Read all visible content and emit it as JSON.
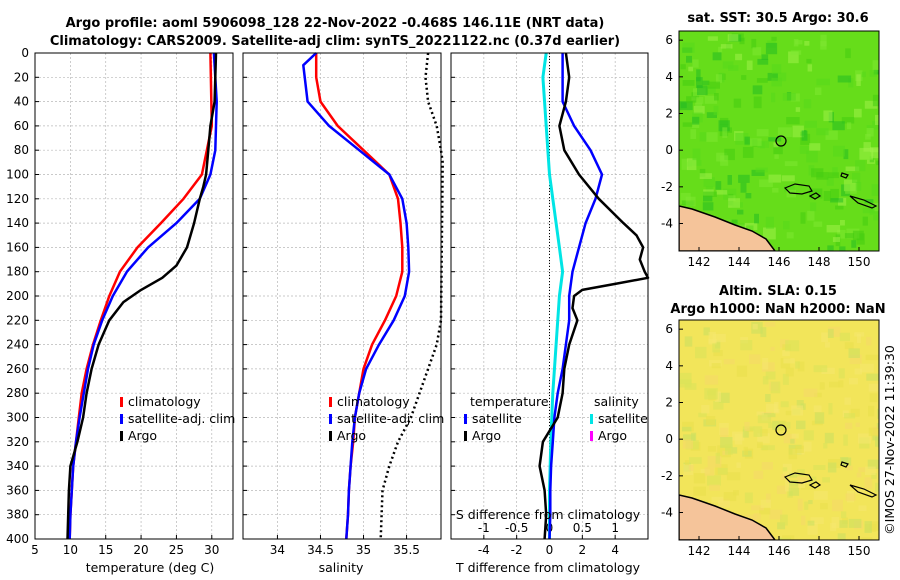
{
  "header": {
    "title_line1": "Argo profile: aoml 5906098_128 22-Nov-2022 -0.468S 146.11E (NRT data)",
    "title_line2": "Climatology: CARS2009. Satellite-adj clim: synTS_20221122.nc (0.37d earlier)"
  },
  "colors": {
    "argo": "#000000",
    "climatology": "#ff0000",
    "satellite": "#0000ff",
    "sat_salinity": "#00e5e5",
    "sal_argo": "#ff00ff",
    "land": "#f5c49a"
  },
  "y_ticks": [
    "0",
    "20",
    "40",
    "60",
    "80",
    "100",
    "120",
    "140",
    "160",
    "180",
    "200",
    "220",
    "240",
    "260",
    "280",
    "300",
    "320",
    "340",
    "360",
    "380",
    "400"
  ],
  "chart_data": [
    {
      "type": "line",
      "title": "",
      "xlabel": "temperature (deg C)",
      "ylabel": "",
      "xlim": [
        5,
        33
      ],
      "ylim": [
        400,
        0
      ],
      "x_ticks": [
        "5",
        "10",
        "15",
        "20",
        "25",
        "30"
      ],
      "legend": [
        "climatology",
        "satellite-adj. clim",
        "Argo"
      ],
      "series": [
        {
          "name": "climatology",
          "depth": [
            0,
            60,
            100,
            120,
            140,
            160,
            180,
            200,
            220,
            240,
            260,
            280,
            300,
            320,
            340,
            360,
            380,
            400
          ],
          "values": [
            29.8,
            30.0,
            28.6,
            26.0,
            22.8,
            19.5,
            17.0,
            15.5,
            14.3,
            13.2,
            12.3,
            11.6,
            11.2,
            10.8,
            10.4,
            10.2,
            10.0,
            9.9
          ]
        },
        {
          "name": "satellite-adj. clim",
          "depth": [
            0,
            40,
            80,
            100,
            120,
            140,
            160,
            180,
            200,
            220,
            240,
            260,
            280,
            300,
            320,
            340,
            360,
            380,
            400
          ],
          "values": [
            30.3,
            30.7,
            30.5,
            29.8,
            28.3,
            25.0,
            21.0,
            18.0,
            16.0,
            14.5,
            13.3,
            12.5,
            11.9,
            11.3,
            10.8,
            10.4,
            10.2,
            10.0,
            9.9
          ]
        },
        {
          "name": "Argo",
          "depth": [
            0,
            20,
            40,
            60,
            80,
            100,
            110,
            120,
            140,
            160,
            175,
            185,
            195,
            205,
            220,
            240,
            260,
            280,
            300,
            320,
            340,
            360,
            380,
            400
          ],
          "values": [
            30.6,
            30.5,
            30.4,
            29.8,
            29.5,
            29.2,
            28.8,
            28.3,
            27.5,
            26.5,
            25.0,
            23.0,
            20.0,
            17.5,
            15.5,
            14.0,
            13.0,
            12.3,
            11.8,
            11.0,
            10.0,
            9.8,
            9.7,
            9.6
          ]
        }
      ]
    },
    {
      "type": "line",
      "xlabel": "salinity",
      "xlim": [
        33.6,
        35.9
      ],
      "ylim": [
        400,
        0
      ],
      "x_ticks": [
        "34",
        "34.5",
        "35",
        "35.5"
      ],
      "legend": [
        "climatology",
        "satellite-adj. clim",
        "Argo"
      ],
      "series": [
        {
          "name": "climatology",
          "depth": [
            0,
            20,
            40,
            60,
            80,
            100,
            120,
            140,
            160,
            180,
            200,
            220,
            240,
            260,
            280,
            300,
            320,
            340,
            360,
            380,
            400
          ],
          "values": [
            34.45,
            34.45,
            34.5,
            34.7,
            35.0,
            35.3,
            35.4,
            35.43,
            35.45,
            35.45,
            35.38,
            35.25,
            35.1,
            35.0,
            34.95,
            34.9,
            34.88,
            34.85,
            34.83,
            34.82,
            34.8
          ]
        },
        {
          "name": "satellite-adj. clim",
          "depth": [
            0,
            10,
            40,
            60,
            80,
            100,
            120,
            140,
            160,
            180,
            200,
            220,
            240,
            260,
            280,
            300,
            320,
            340,
            360,
            380,
            400
          ],
          "values": [
            34.45,
            34.3,
            34.35,
            34.6,
            34.95,
            35.3,
            35.45,
            35.5,
            35.52,
            35.53,
            35.48,
            35.35,
            35.18,
            35.03,
            34.95,
            34.9,
            34.87,
            34.85,
            34.83,
            34.82,
            34.8
          ]
        },
        {
          "name": "Argo",
          "depth": [
            0,
            20,
            40,
            60,
            80,
            90,
            220,
            240,
            260,
            280,
            300,
            320,
            340,
            360,
            400
          ],
          "values": [
            35.75,
            35.72,
            35.75,
            35.85,
            35.9,
            35.92,
            35.9,
            35.85,
            35.75,
            35.65,
            35.55,
            35.4,
            35.3,
            35.22,
            35.2
          ]
        }
      ]
    },
    {
      "type": "line",
      "xlabel": "T difference from climatology",
      "x2label": "S difference from climatology",
      "xlim": [
        -6,
        6
      ],
      "x2lim": [
        -1.5,
        1.5
      ],
      "ylim": [
        400,
        0
      ],
      "x_ticks": [
        "-4",
        "-2",
        "0",
        "2",
        "4"
      ],
      "x2_ticks": [
        "-1",
        "-0.5",
        "0",
        "0.5",
        "1"
      ],
      "legend_temperature": {
        "title": "temperature",
        "items": [
          "satellite",
          "Argo"
        ]
      },
      "legend_salinity": {
        "title": "salinity",
        "items": [
          "satellite",
          "Argo"
        ]
      },
      "series": [
        {
          "name": "T satellite",
          "depth": [
            0,
            20,
            40,
            60,
            80,
            100,
            120,
            140,
            160,
            180,
            200,
            220,
            240,
            260,
            280,
            300,
            320,
            340,
            360,
            380,
            400
          ],
          "values": [
            0.8,
            0.8,
            0.8,
            1.5,
            2.5,
            3.2,
            2.8,
            2.2,
            1.8,
            1.4,
            1.2,
            1.2,
            1.0,
            0.8,
            0.5,
            0.3,
            0.2,
            0.1,
            0.05,
            0.05,
            0.0
          ]
        },
        {
          "name": "T Argo",
          "depth": [
            0,
            20,
            40,
            60,
            80,
            100,
            120,
            140,
            150,
            160,
            170,
            180,
            185,
            190,
            195,
            200,
            210,
            220,
            240,
            260,
            280,
            300,
            320,
            340,
            360,
            380,
            400
          ],
          "values": [
            1.0,
            1.2,
            1.0,
            0.6,
            0.9,
            1.8,
            3.0,
            4.5,
            5.3,
            5.7,
            5.5,
            5.8,
            6.0,
            4.0,
            2.0,
            1.5,
            1.4,
            1.7,
            1.2,
            0.9,
            0.8,
            0.5,
            -0.4,
            -0.6,
            -0.3,
            -0.2,
            -0.3
          ]
        },
        {
          "name": "S satellite",
          "depth": [
            0,
            20,
            60,
            100,
            140,
            160,
            180,
            200,
            240,
            280,
            320,
            360,
            400
          ],
          "values": [
            -0.05,
            -0.1,
            -0.05,
            0.0,
            0.1,
            0.15,
            0.2,
            0.15,
            0.1,
            0.05,
            0.02,
            0.0,
            0.0
          ]
        }
      ]
    },
    {
      "type": "heatmap",
      "title": "sat. SST: 30.5 Argo: 30.6",
      "xlim": [
        141,
        151
      ],
      "ylim": [
        -5.5,
        6.5
      ],
      "x_ticks": [
        "142",
        "144",
        "146",
        "148",
        "150"
      ],
      "y_ticks": [
        "6",
        "4",
        "2",
        "0",
        "-2",
        "-4"
      ],
      "marker": {
        "lon": 146.1,
        "lat": 0.5
      }
    },
    {
      "type": "heatmap",
      "title": "Altim. SLA: 0.15",
      "subtitle": "Argo h1000: NaN h2000: NaN",
      "xlim": [
        141,
        151
      ],
      "ylim": [
        -5.5,
        6.5
      ],
      "x_ticks": [
        "142",
        "144",
        "146",
        "148",
        "150"
      ],
      "y_ticks": [
        "6",
        "4",
        "2",
        "0",
        "-2",
        "-4"
      ],
      "marker": {
        "lon": 146.1,
        "lat": 0.5
      }
    }
  ],
  "footer": {
    "stamp": "©IMOS 27-Nov-2022 11:39:30"
  }
}
